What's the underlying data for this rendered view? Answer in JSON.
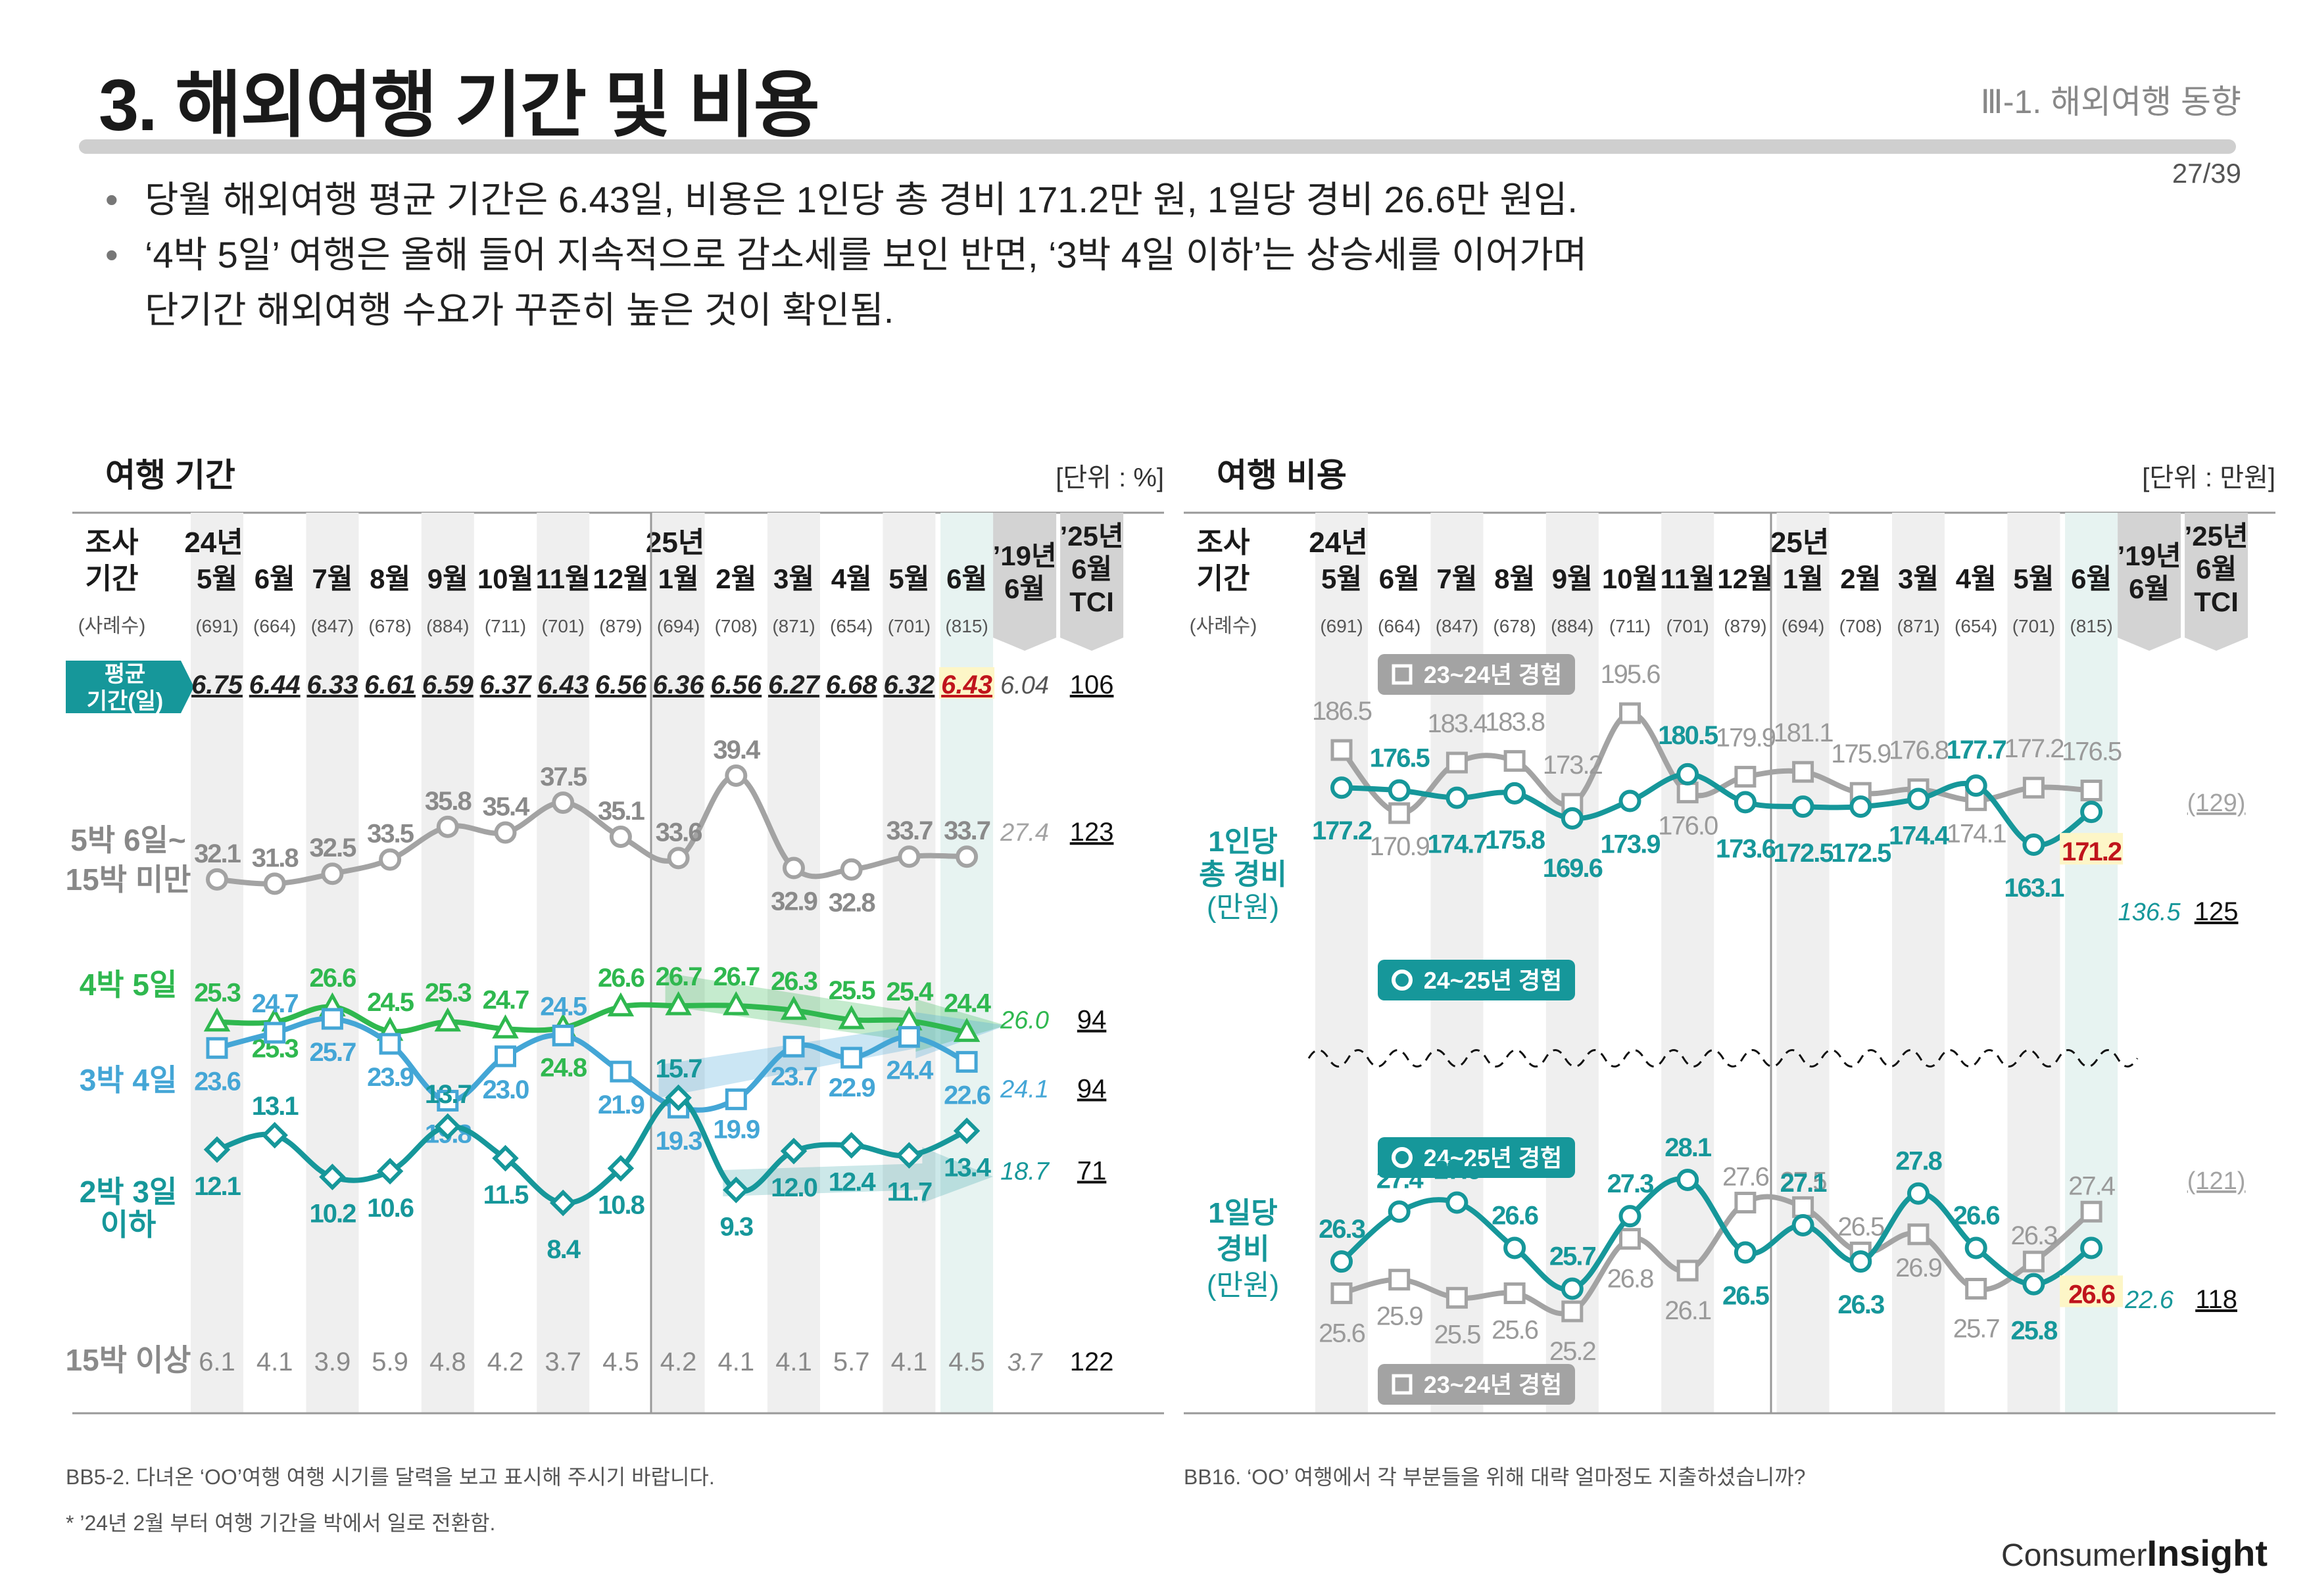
{
  "header": {
    "title": "3. 해외여행 기간 및 비용",
    "section": "Ⅲ-1. 해외여행 동향",
    "page": "27/39"
  },
  "bullets": [
    "당월 해외여행 평균 기간은 6.43일, 비용은 1인당 총 경비 171.2만 원, 1일당 경비 26.6만 원임.",
    "‘4박 5일’ 여행은 올해 들어 지속적으로 감소세를 보인 반면, ‘3박 4일 이하’는 상승세를 이어가며",
    "단기간 해외여행 수요가 꾸준히 높은 것이 확인됨."
  ],
  "footnotes": {
    "left": "BB5-2. 다녀온 ‘OO’여행 여행 시기를 달력을 보고 표시해 주시기 바랍니다.",
    "left2": "* ’24년 2월 부터 여행 기간을 박에서 일로 전환함.",
    "right": "BB16. ‘OO’ 여행에서 각 부분들을 위해 대략 얼마정도 지출하셨습니까?"
  },
  "logo": {
    "a": "Consumer",
    "b": "Insight"
  },
  "common": {
    "survey_label": [
      "조사",
      "기간"
    ],
    "sample_label": "(사례수)",
    "year24": "24년",
    "year25": "25년",
    "months": [
      "5월",
      "6월",
      "7월",
      "8월",
      "9월",
      "10월",
      "11월",
      "12월",
      "1월",
      "2월",
      "3월",
      "4월",
      "5월",
      "6월"
    ],
    "samples": [
      "(691)",
      "(664)",
      "(847)",
      "(678)",
      "(884)",
      "(711)",
      "(701)",
      "(879)",
      "(694)",
      "(708)",
      "(871)",
      "(654)",
      "(701)",
      "(815)"
    ],
    "col19": [
      "’19년",
      "6월"
    ],
    "colTCI": [
      "’25년",
      "6월",
      "TCI"
    ]
  },
  "colors": {
    "gray": "#a3a3a3",
    "green": "#2fb84f",
    "blue": "#44a6d6",
    "teal": "#16979a",
    "red": "#c0141c",
    "darktext": "#222222"
  },
  "chart_data": [
    {
      "type": "line",
      "title": "여행 기간",
      "unit": "[단위 : %]",
      "avg_label": [
        "평균",
        "기간(일)"
      ],
      "avg": [
        "6.75",
        "6.44",
        "6.33",
        "6.61",
        "6.59",
        "6.37",
        "6.43",
        "6.56",
        "6.36",
        "6.56",
        "6.27",
        "6.68",
        "6.32",
        "6.43"
      ],
      "avg_19": "6.04",
      "avg_tci": "106",
      "series": [
        {
          "name": "5박 6일~15박 미만",
          "label": [
            "5박 6일~",
            "15박 미만"
          ],
          "values": [
            32.1,
            31.8,
            32.5,
            33.5,
            35.8,
            35.4,
            37.5,
            35.1,
            33.6,
            39.4,
            32.9,
            32.8,
            33.7,
            33.7
          ],
          "y19": "27.4",
          "tci": "123"
        },
        {
          "name": "4박 5일",
          "label": [
            "4박 5일"
          ],
          "values": [
            25.3,
            25.3,
            26.6,
            24.5,
            25.3,
            24.7,
            24.8,
            26.6,
            26.7,
            26.7,
            26.3,
            25.5,
            25.4,
            24.4
          ],
          "y19": "26.0",
          "tci": "94"
        },
        {
          "name": "3박 4일",
          "label": [
            "3박 4일"
          ],
          "values": [
            23.6,
            24.7,
            25.7,
            23.9,
            19.8,
            23.0,
            24.5,
            21.9,
            19.3,
            19.9,
            23.7,
            22.9,
            24.4,
            22.6
          ],
          "y19": "24.1",
          "tci": "94"
        },
        {
          "name": "2박 3일 이하",
          "label": [
            "2박 3일",
            "이하"
          ],
          "values": [
            12.1,
            13.1,
            10.2,
            10.6,
            13.7,
            11.5,
            8.4,
            10.8,
            15.7,
            9.3,
            12.0,
            12.4,
            11.7,
            13.4
          ],
          "y19": "18.7",
          "tci": "71"
        },
        {
          "name": "15박 이상",
          "label": [
            "15박 이상"
          ],
          "values": [
            6.1,
            4.1,
            3.9,
            5.9,
            4.8,
            4.2,
            3.7,
            4.5,
            4.2,
            4.1,
            4.1,
            5.7,
            4.1,
            4.5
          ],
          "y19": "3.7",
          "tci": "122"
        }
      ]
    },
    {
      "type": "line",
      "title": "여행 비용",
      "unit": "[단위 : 만원]",
      "badges": {
        "gray": "23~24년 경험",
        "teal": "24~25년 경험"
      },
      "groups": [
        {
          "name": "1인당 총 경비",
          "label": [
            "1인당",
            "총 경비",
            "(만원)"
          ],
          "series": [
            {
              "name": "23~24년 경험",
              "values": [
                186.5,
                170.9,
                183.4,
                183.8,
                173.2,
                195.6,
                176.0,
                179.9,
                181.1,
                175.9,
                176.8,
                174.1,
                177.2,
                176.5
              ]
            },
            {
              "name": "24~25년 경험",
              "values": [
                177.2,
                176.5,
                174.7,
                175.8,
                169.6,
                173.9,
                180.5,
                173.6,
                172.5,
                172.5,
                174.4,
                177.7,
                163.1,
                171.2
              ]
            }
          ],
          "y19_prev": "(129)",
          "y19": "136.5",
          "tci": "125"
        },
        {
          "name": "1일당 경비",
          "label": [
            "1일당",
            "경비",
            "(만원)"
          ],
          "series": [
            {
              "name": "23~24년 경험",
              "values": [
                25.6,
                25.9,
                25.5,
                25.6,
                25.2,
                26.8,
                26.1,
                27.6,
                27.5,
                26.5,
                26.9,
                25.7,
                26.3,
                27.4
              ]
            },
            {
              "name": "24~25년 경험",
              "values": [
                26.3,
                27.4,
                27.6,
                26.6,
                25.7,
                27.3,
                28.1,
                26.5,
                27.1,
                26.3,
                27.8,
                26.6,
                25.8,
                26.6
              ]
            }
          ],
          "y19_prev": "(121)",
          "y19": "22.6",
          "tci": "118"
        }
      ]
    }
  ]
}
